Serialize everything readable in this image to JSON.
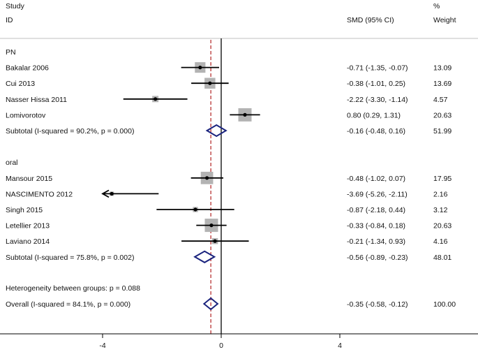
{
  "chart_data": {
    "type": "forest",
    "title": "",
    "header": {
      "study": "Study",
      "id": "ID",
      "effect": "SMD (95% CI)",
      "pct": "%",
      "weight": "Weight"
    },
    "groups": [
      {
        "name": "PN",
        "studies": [
          {
            "label": "Bakalar 2006",
            "est": -0.71,
            "lo": -1.35,
            "hi": -0.07,
            "ci_text": "-0.71 (-1.35, -0.07)",
            "weight": "13.09"
          },
          {
            "label": "Cui 2013",
            "est": -0.38,
            "lo": -1.01,
            "hi": 0.25,
            "ci_text": "-0.38 (-1.01, 0.25)",
            "weight": "13.69"
          },
          {
            "label": "Nasser Hissa 2011",
            "est": -2.22,
            "lo": -3.3,
            "hi": -1.14,
            "ci_text": "-2.22 (-3.30, -1.14)",
            "weight": "4.57"
          },
          {
            "label": "Lomivorotov",
            "est": 0.8,
            "lo": 0.29,
            "hi": 1.31,
            "ci_text": "0.80 (0.29, 1.31)",
            "weight": "20.63"
          }
        ],
        "subtotal": {
          "label": "Subtotal  (I-squared = 90.2%, p = 0.000)",
          "est": -0.16,
          "lo": -0.48,
          "hi": 0.16,
          "ci_text": "-0.16 (-0.48, 0.16)",
          "weight": "51.99"
        }
      },
      {
        "name": "oral",
        "studies": [
          {
            "label": "Mansour 2015",
            "est": -0.48,
            "lo": -1.02,
            "hi": 0.07,
            "ci_text": "-0.48 (-1.02, 0.07)",
            "weight": "17.95"
          },
          {
            "label": "NASCIMENTO 2012",
            "est": -3.69,
            "lo": -5.26,
            "hi": -2.11,
            "ci_text": "-3.69 (-5.26, -2.11)",
            "weight": "2.16",
            "arrow_left": true
          },
          {
            "label": "Singh 2015",
            "est": -0.87,
            "lo": -2.18,
            "hi": 0.44,
            "ci_text": "-0.87 (-2.18, 0.44)",
            "weight": "3.12"
          },
          {
            "label": "Letellier 2013",
            "est": -0.33,
            "lo": -0.84,
            "hi": 0.18,
            "ci_text": "-0.33 (-0.84, 0.18)",
            "weight": "20.63"
          },
          {
            "label": "Laviano 2014",
            "est": -0.21,
            "lo": -1.34,
            "hi": 0.93,
            "ci_text": "-0.21 (-1.34, 0.93)",
            "weight": "4.16"
          }
        ],
        "subtotal": {
          "label": "Subtotal  (I-squared = 75.8%, p = 0.002)",
          "est": -0.56,
          "lo": -0.89,
          "hi": -0.23,
          "ci_text": "-0.56 (-0.89, -0.23)",
          "weight": "48.01"
        }
      }
    ],
    "heterogeneity": "Heterogeneity between groups: p = 0.088",
    "overall": {
      "label": "Overall  (I-squared = 84.1%, p = 0.000)",
      "est": -0.35,
      "lo": -0.58,
      "hi": -0.12,
      "ci_text": "-0.35 (-0.58, -0.12)",
      "weight": "100.00"
    },
    "null_line": 0,
    "x_ticks": [
      -4,
      0,
      4
    ],
    "x_tick_labels": [
      "-4",
      "0",
      "4"
    ],
    "xlim": [
      -4,
      4
    ],
    "colors": {
      "ci": "#000000",
      "box": "#b3b3b3",
      "diamond": "#1a237e",
      "overall_line": "#b22222",
      "rule": "#c0c0c0"
    }
  }
}
